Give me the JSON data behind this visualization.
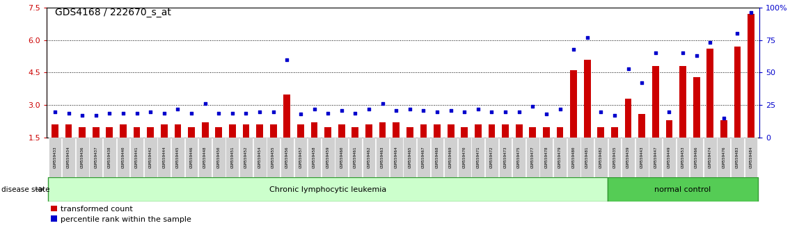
{
  "title": "GDS4168 / 222670_s_at",
  "ylim_left": [
    1.5,
    7.5
  ],
  "ylim_right": [
    0,
    100
  ],
  "yticks_left": [
    1.5,
    3.0,
    4.5,
    6.0,
    7.5
  ],
  "yticks_right": [
    0,
    25,
    50,
    75,
    100
  ],
  "samples": [
    "GSM559433",
    "GSM559434",
    "GSM559436",
    "GSM559437",
    "GSM559438",
    "GSM559440",
    "GSM559441",
    "GSM559442",
    "GSM559444",
    "GSM559445",
    "GSM559446",
    "GSM559448",
    "GSM559450",
    "GSM559451",
    "GSM559452",
    "GSM559454",
    "GSM559455",
    "GSM559456",
    "GSM559457",
    "GSM559458",
    "GSM559459",
    "GSM559460",
    "GSM559461",
    "GSM559462",
    "GSM559463",
    "GSM559464",
    "GSM559465",
    "GSM559467",
    "GSM559468",
    "GSM559469",
    "GSM559470",
    "GSM559471",
    "GSM559472",
    "GSM559473",
    "GSM559475",
    "GSM559477",
    "GSM559478",
    "GSM559479",
    "GSM559480",
    "GSM559481",
    "GSM559482",
    "GSM559435",
    "GSM559439",
    "GSM559443",
    "GSM559447",
    "GSM559449",
    "GSM559453",
    "GSM559466",
    "GSM559474",
    "GSM559476",
    "GSM559483",
    "GSM559484"
  ],
  "red_values": [
    2.1,
    2.1,
    2.0,
    2.0,
    2.0,
    2.1,
    2.0,
    2.0,
    2.1,
    2.1,
    2.0,
    2.2,
    2.0,
    2.1,
    2.1,
    2.1,
    2.1,
    3.5,
    2.1,
    2.2,
    2.0,
    2.1,
    2.0,
    2.1,
    2.2,
    2.2,
    2.0,
    2.1,
    2.1,
    2.1,
    2.0,
    2.1,
    2.1,
    2.1,
    2.1,
    2.0,
    2.0,
    2.0,
    4.6,
    5.1,
    2.0,
    2.0,
    3.3,
    2.6,
    4.8,
    2.3,
    4.8,
    4.3,
    5.6,
    2.3,
    5.7,
    7.2
  ],
  "blue_values": [
    20,
    19,
    17,
    17,
    19,
    19,
    19,
    20,
    19,
    22,
    19,
    26,
    19,
    19,
    19,
    20,
    20,
    60,
    18,
    22,
    19,
    21,
    19,
    22,
    26,
    21,
    22,
    21,
    20,
    21,
    20,
    22,
    20,
    20,
    20,
    24,
    18,
    22,
    68,
    77,
    20,
    17,
    53,
    42,
    65,
    20,
    65,
    63,
    73,
    15,
    80,
    96
  ],
  "group_labels": [
    "Chronic lymphocytic leukemia",
    "normal control"
  ],
  "group_split": 41,
  "n_total": 52,
  "legend_labels": [
    "transformed count",
    "percentile rank within the sample"
  ],
  "legend_colors": [
    "#cc0000",
    "#0000cc"
  ],
  "bar_color": "#cc0000",
  "dot_color": "#0000cc",
  "group1_color": "#ccffcc",
  "group2_color": "#55cc55",
  "xticklabel_bg": "#d0d0d0",
  "title_fontsize": 10,
  "axis_fontsize": 8,
  "bar_width": 0.5
}
